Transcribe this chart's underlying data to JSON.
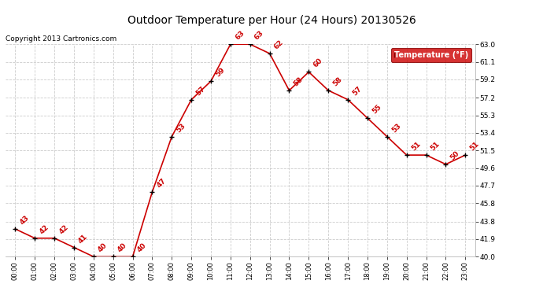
{
  "title": "Outdoor Temperature per Hour (24 Hours) 20130526",
  "copyright": "Copyright 2013 Cartronics.com",
  "legend_label": "Temperature (°F)",
  "hours": [
    "00:00",
    "01:00",
    "02:00",
    "03:00",
    "04:00",
    "05:00",
    "06:00",
    "07:00",
    "08:00",
    "09:00",
    "10:00",
    "11:00",
    "12:00",
    "13:00",
    "14:00",
    "15:00",
    "16:00",
    "17:00",
    "18:00",
    "19:00",
    "20:00",
    "21:00",
    "22:00",
    "23:00"
  ],
  "temps": [
    43,
    42,
    42,
    41,
    40,
    40,
    40,
    47,
    53,
    57,
    59,
    63,
    63,
    62,
    58,
    60,
    58,
    57,
    55,
    53,
    51,
    51,
    50,
    51
  ],
  "ylim": [
    40.0,
    63.0
  ],
  "yticks": [
    40.0,
    41.9,
    43.8,
    45.8,
    47.7,
    49.6,
    51.5,
    53.4,
    55.3,
    57.2,
    59.2,
    61.1,
    63.0
  ],
  "line_color": "#cc0000",
  "marker_color": "#000000",
  "label_color": "#cc0000",
  "legend_bg": "#cc0000",
  "legend_fg": "#ffffff",
  "bg_color": "#ffffff",
  "grid_color": "#cccccc",
  "title_color": "#000000",
  "copyright_color": "#000000"
}
